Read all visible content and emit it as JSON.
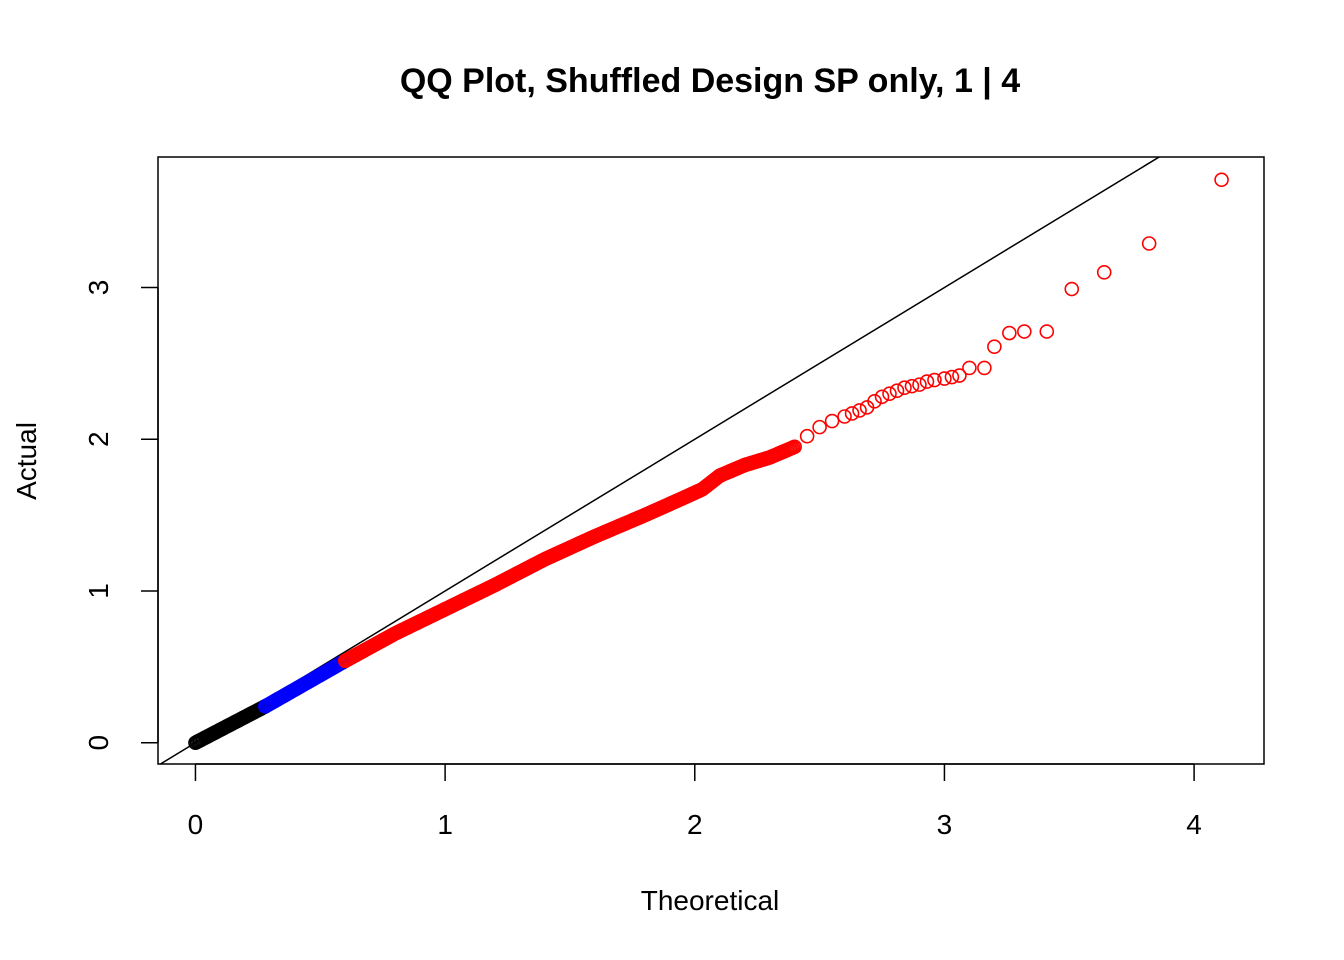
{
  "chart_data": {
    "type": "scatter",
    "title": "QQ Plot, Shuffled Design SP only, 1 | 4",
    "xlabel": "Theoretical",
    "ylabel": "Actual",
    "xlim": [
      -0.15,
      4.28
    ],
    "ylim": [
      -0.14,
      3.86
    ],
    "x_ticks": [
      "0",
      "1",
      "2",
      "3",
      "4"
    ],
    "y_ticks": [
      "0",
      "1",
      "2",
      "3"
    ],
    "reference_line": {
      "intercept": 0,
      "slope": 1
    },
    "colors": {
      "low": "#000000",
      "mid": "#0000ff",
      "high": "#ff0000"
    },
    "series": [
      {
        "color": "low",
        "marker": "open-circle",
        "dense_segment": {
          "x": [
            0,
            0.28
          ],
          "y": [
            0,
            0.24
          ]
        }
      },
      {
        "color": "mid",
        "marker": "open-circle",
        "dense_segment": {
          "x": [
            0.28,
            0.6
          ],
          "y": [
            0.24,
            0.54
          ]
        }
      },
      {
        "color": "high",
        "marker": "open-circle",
        "dense_segment": {
          "x": [
            0.6,
            0.8,
            1.0,
            1.2,
            1.4,
            1.6,
            1.8,
            1.95,
            2.03,
            2.1,
            2.2,
            2.3,
            2.4
          ],
          "y": [
            0.54,
            0.72,
            0.88,
            1.04,
            1.21,
            1.36,
            1.5,
            1.61,
            1.67,
            1.76,
            1.83,
            1.88,
            1.95
          ]
        },
        "points": [
          [
            2.45,
            2.02
          ],
          [
            2.5,
            2.08
          ],
          [
            2.55,
            2.12
          ],
          [
            2.6,
            2.15
          ],
          [
            2.63,
            2.17
          ],
          [
            2.66,
            2.19
          ],
          [
            2.69,
            2.21
          ],
          [
            2.72,
            2.25
          ],
          [
            2.75,
            2.28
          ],
          [
            2.78,
            2.3
          ],
          [
            2.81,
            2.32
          ],
          [
            2.84,
            2.34
          ],
          [
            2.87,
            2.35
          ],
          [
            2.9,
            2.36
          ],
          [
            2.93,
            2.38
          ],
          [
            2.96,
            2.39
          ],
          [
            3.0,
            2.4
          ],
          [
            3.03,
            2.41
          ],
          [
            3.06,
            2.42
          ],
          [
            3.1,
            2.47
          ],
          [
            3.16,
            2.47
          ],
          [
            3.2,
            2.61
          ],
          [
            3.26,
            2.7
          ],
          [
            3.32,
            2.71
          ],
          [
            3.41,
            2.71
          ],
          [
            3.51,
            2.99
          ],
          [
            3.64,
            3.1
          ],
          [
            3.82,
            3.29
          ],
          [
            4.11,
            3.71
          ]
        ]
      }
    ]
  }
}
